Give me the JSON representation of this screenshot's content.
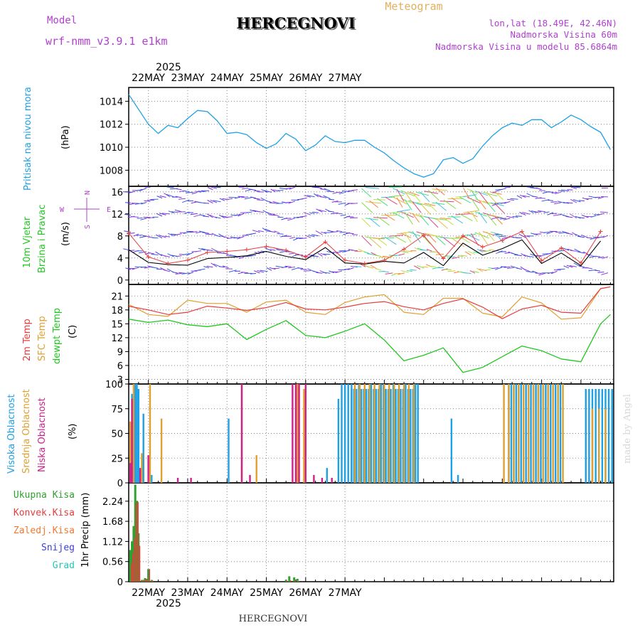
{
  "header": {
    "model_label": "Model",
    "model_name": "wrf-nmm_v3.9.1  e1km",
    "title": "HERCEGNOVI",
    "product": "Meteogram",
    "lonlat": "lon,lat (18.49E, 42.46N)",
    "elevation": "Nadmorska Visina 60m",
    "model_elevation": "Nadmorska Visina u modelu 85.6864m",
    "year": "2025",
    "footer_title": "HERCEGNOVI",
    "credit": "made by Angel"
  },
  "colors": {
    "pressure": "#1ea0e6",
    "wind_speed": "#000000",
    "wind_gust": "#e83c3c",
    "temp2m": "#e83c3c",
    "sfc_temp": "#e0a030",
    "dewpoint": "#20c820",
    "high_cloud": "#1ea0e6",
    "mid_cloud": "#e0a030",
    "low_cloud": "#d0208c",
    "total_precip": "#30a030",
    "conv_precip": "#e83c3c",
    "snow": "#3c3cdc",
    "hail": "#20c8b4"
  },
  "chart_data": [
    {
      "type": "line",
      "panel": "pressure",
      "ylabel_lines": [
        "Pritisak na nivou mora",
        "(hPa)"
      ],
      "x_ticks": [
        "22MAY",
        "23MAY",
        "24MAY",
        "25MAY",
        "26MAY",
        "27MAY"
      ],
      "y_ticks": [
        1008,
        1010,
        1012,
        1014
      ],
      "ylim": [
        1006.6,
        1015.2
      ],
      "x_hours": [
        0,
        6,
        12,
        18,
        24,
        30,
        36,
        42,
        48,
        54,
        60,
        66,
        72,
        78,
        84,
        90,
        96,
        102,
        108,
        114,
        120,
        126,
        132,
        138,
        144,
        150,
        156,
        162,
        168,
        174,
        180,
        186,
        192,
        198,
        204,
        210,
        216,
        222,
        228,
        234,
        240,
        246,
        252,
        258,
        264,
        270,
        276,
        282,
        288,
        294
      ],
      "series": [
        {
          "name": "",
          "values": [
            1014.6,
            1013.3,
            1012.0,
            1011.2,
            1011.9,
            1011.7,
            1012.5,
            1013.2,
            1013.1,
            1012.3,
            1011.2,
            1011.3,
            1011.1,
            1010.4,
            1009.9,
            1010.3,
            1011.2,
            1010.7,
            1009.7,
            1010.2,
            1011.0,
            1010.5,
            1010.4,
            1010.6,
            1010.6,
            1010.0,
            1009.5,
            1008.8,
            1008.2,
            1007.7,
            1007.4,
            1007.7,
            1008.9,
            1009.1,
            1008.6,
            1009.0,
            1010.1,
            1011.0,
            1011.7,
            1012.1,
            1011.9,
            1012.4,
            1012.4,
            1011.7,
            1012.2,
            1012.8,
            1012.4,
            1011.8,
            1011.3,
            1009.8
          ]
        }
      ]
    },
    {
      "type": "line",
      "panel": "wind",
      "ylabel_lines": [
        "10m Vjetar",
        "Brzina i Pravac",
        "(m/s)"
      ],
      "compass": {
        "n": "N",
        "s": "S",
        "w": "W",
        "e": "E"
      },
      "y_ticks": [
        0,
        4,
        8,
        12,
        16
      ],
      "ylim": [
        -0.8,
        17
      ],
      "x_hours": [
        0,
        12,
        24,
        36,
        48,
        60,
        72,
        84,
        96,
        108,
        120,
        132,
        144,
        156,
        168,
        180,
        192,
        204,
        216,
        228,
        240,
        252,
        264,
        276,
        288
      ],
      "series": [
        {
          "name": "",
          "values": [
            5.5,
            3.2,
            2.8,
            2.7,
            3.9,
            4.1,
            4.4,
            5.2,
            4.3,
            3.7,
            5.9,
            3.1,
            2.9,
            3.4,
            3.1,
            5.0,
            2.6,
            6.7,
            4.5,
            5.7,
            7.3,
            3.0,
            4.9,
            2.6,
            7.1
          ]
        },
        {
          "name": "",
          "values": [
            8.5,
            4.2,
            3.0,
            3.6,
            5.0,
            5.2,
            5.5,
            6.1,
            5.4,
            4.2,
            6.9,
            3.6,
            3.0,
            3.6,
            5.6,
            8.1,
            3.9,
            8.0,
            6.0,
            7.2,
            8.8,
            3.5,
            5.8,
            3.1,
            8.8
          ]
        }
      ]
    },
    {
      "type": "line",
      "panel": "temperature",
      "ylabel_lines": [
        "2m Temp",
        "SFC Temp",
        "dewpt Temp",
        "(C)"
      ],
      "y_ticks": [
        3,
        6,
        9,
        12,
        15,
        18,
        21
      ],
      "ylim": [
        2,
        23.5
      ],
      "x_hours": [
        0,
        12,
        24,
        36,
        48,
        60,
        72,
        84,
        96,
        108,
        120,
        132,
        144,
        156,
        168,
        180,
        192,
        204,
        216,
        228,
        240,
        252,
        264,
        276,
        288,
        294
      ],
      "series": [
        {
          "name": "",
          "values": [
            18.8,
            18.0,
            17.0,
            17.5,
            18.8,
            18.4,
            17.9,
            18.5,
            19.6,
            18.2,
            18.0,
            18.6,
            19.4,
            19.8,
            18.7,
            18.0,
            19.4,
            20.4,
            18.6,
            16.1,
            18.2,
            19.0,
            17.5,
            17.3,
            22.6,
            23.0
          ]
        },
        {
          "name": "",
          "values": [
            19.2,
            17.0,
            16.6,
            20.1,
            19.4,
            19.4,
            17.5,
            19.7,
            20.1,
            17.5,
            17.0,
            19.6,
            20.8,
            21.3,
            17.5,
            17.0,
            20.5,
            20.5,
            17.3,
            16.5,
            20.8,
            19.5,
            16.0,
            16.3,
            22.6,
            23.0
          ]
        },
        {
          "name": "",
          "values": [
            16.0,
            15.3,
            15.8,
            14.8,
            14.4,
            15.0,
            11.6,
            13.8,
            15.7,
            12.5,
            12.0,
            13.4,
            15.0,
            11.5,
            7.0,
            8.2,
            9.8,
            4.5,
            5.6,
            7.9,
            10.2,
            9.2,
            7.4,
            6.8,
            15.0,
            17.0
          ]
        }
      ]
    },
    {
      "type": "bar",
      "panel": "cloud",
      "ylabel_lines": [
        "Visoka Oblacnost",
        "Srednja Oblacnost",
        "Niska Oblacnost",
        "(%)"
      ],
      "y_ticks": [
        0,
        25,
        50,
        75,
        100
      ],
      "ylim": [
        0,
        100
      ]
    },
    {
      "type": "bar",
      "panel": "precip",
      "legend": [
        "Ukupna Kisa",
        "Konvek.Kisa",
        "Zaledj.Kisa",
        "Snijeg",
        "Grad"
      ],
      "ylabel_lines": [
        "1hr Precip (mm)"
      ],
      "y_ticks": [
        0,
        0.56,
        1.12,
        1.68,
        2.24
      ],
      "ylim": [
        0,
        2.75
      ],
      "x_hours": [
        1,
        2,
        3,
        4,
        5,
        6,
        8,
        9,
        10,
        11,
        12,
        14,
        96,
        98,
        101,
        103
      ],
      "series": [
        {
          "name": "",
          "values": [
            0.88,
            1.12,
            1.55,
            2.7,
            2.25,
            1.35,
            0.05,
            0.05,
            0.1,
            0.08,
            0.35,
            0.05,
            0.05,
            0.15,
            0.12,
            0.08
          ]
        },
        {
          "name": "",
          "values": [
            0.5,
            0.8,
            1.2,
            2.2,
            2.22,
            1.0,
            0.03,
            0.03,
            0.08,
            0.05,
            0.35,
            0.03,
            0.02,
            0.04,
            0.03,
            0.02
          ]
        }
      ]
    }
  ]
}
